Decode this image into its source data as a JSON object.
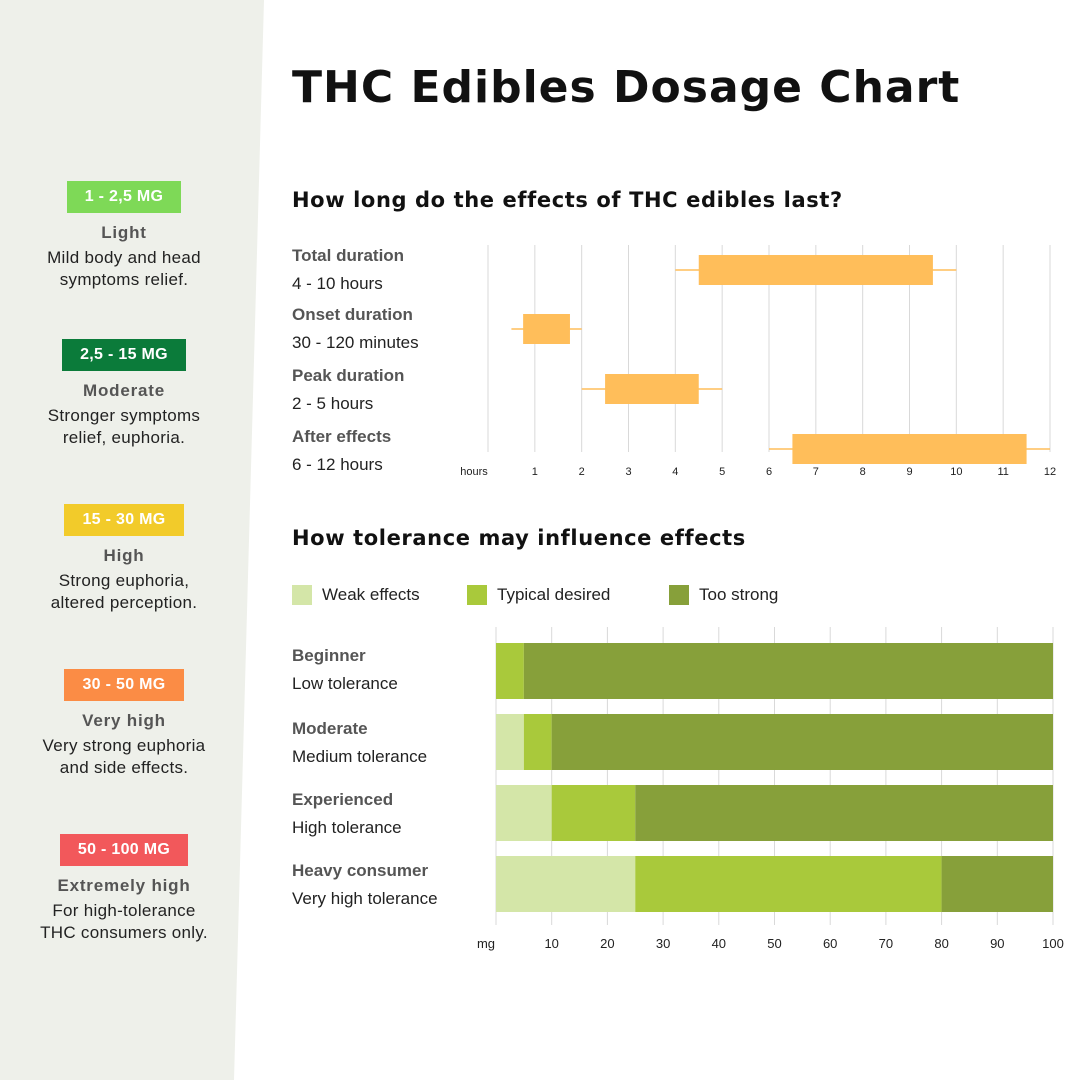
{
  "title": "THC Edibles Dosage Chart",
  "doses": [
    {
      "range": "1 - 2,5 MG",
      "level": "Light",
      "desc": [
        "Mild body and head",
        "symptoms relief."
      ],
      "color": "#7ed957"
    },
    {
      "range": "2,5 - 15 MG",
      "level": "Moderate",
      "desc": [
        "Stronger symptoms",
        "relief, euphoria."
      ],
      "color": "#0b7b3a"
    },
    {
      "range": "15 - 30 MG",
      "level": "High",
      "desc": [
        "Strong euphoria,",
        "altered perception."
      ],
      "color": "#f2cb2a"
    },
    {
      "range": "30 - 50 MG",
      "level": "Very high",
      "desc": [
        "Very strong euphoria",
        "and side effects."
      ],
      "color": "#fb8c45"
    },
    {
      "range": "50 - 100 MG",
      "level": "Extremely high",
      "desc": [
        "For high-tolerance",
        "THC consumers only."
      ],
      "color": "#f2585b"
    }
  ],
  "duration": {
    "title": "How long do the effects of THC edibles last?",
    "rows": [
      {
        "name": "Total duration",
        "sub": "4 - 10 hours"
      },
      {
        "name": "Onset duration",
        "sub": "30 - 120 minutes"
      },
      {
        "name": "Peak duration",
        "sub": "2 - 5 hours"
      },
      {
        "name": "After effects",
        "sub": "6 - 12 hours"
      }
    ]
  },
  "tolerance": {
    "title": "How tolerance may influence effects",
    "legend": [
      {
        "label": "Weak effects",
        "color": "#d4e6a8"
      },
      {
        "label": "Typical desired",
        "color": "#a9c93b"
      },
      {
        "label": "Too strong",
        "color": "#87a03a"
      }
    ],
    "rows": [
      {
        "name": "Beginner",
        "sub": "Low tolerance"
      },
      {
        "name": "Moderate",
        "sub": "Medium tolerance"
      },
      {
        "name": "Experienced",
        "sub": "High tolerance"
      },
      {
        "name": "Heavy consumer",
        "sub": "Very high tolerance"
      }
    ]
  },
  "chart_data": [
    {
      "type": "box",
      "title": "How long do the effects of THC edibles last?",
      "xlabel": "hours",
      "xlim": [
        0,
        12
      ],
      "xticks": [
        1,
        2,
        3,
        4,
        5,
        6,
        7,
        8,
        9,
        10,
        11,
        12
      ],
      "color": "#ffbe5a",
      "categories": [
        "Total duration",
        "Onset duration",
        "Peak duration",
        "After effects"
      ],
      "boxes": [
        {
          "whisker_low": 4,
          "q1": 4.5,
          "q3": 9.5,
          "whisker_high": 10
        },
        {
          "whisker_low": 0.5,
          "q1": 0.75,
          "q3": 1.75,
          "whisker_high": 2
        },
        {
          "whisker_low": 2,
          "q1": 2.5,
          "q3": 4.5,
          "whisker_high": 5
        },
        {
          "whisker_low": 6,
          "q1": 6.5,
          "q3": 11.5,
          "whisker_high": 12
        }
      ]
    },
    {
      "type": "bar",
      "orientation": "horizontal",
      "stacked": true,
      "title": "How tolerance may influence effects",
      "xlabel": "mg",
      "xlim": [
        0,
        100
      ],
      "xticks": [
        10,
        20,
        30,
        40,
        50,
        60,
        70,
        80,
        90,
        100
      ],
      "categories": [
        "Beginner",
        "Moderate",
        "Experienced",
        "Heavy consumer"
      ],
      "series": [
        {
          "name": "Weak effects",
          "values": [
            0,
            5,
            10,
            25
          ],
          "color": "#d4e6a8"
        },
        {
          "name": "Typical desired",
          "values": [
            5,
            5,
            15,
            55
          ],
          "color": "#a9c93b"
        },
        {
          "name": "Too strong",
          "values": [
            95,
            90,
            75,
            20
          ],
          "color": "#87a03a"
        }
      ]
    }
  ]
}
